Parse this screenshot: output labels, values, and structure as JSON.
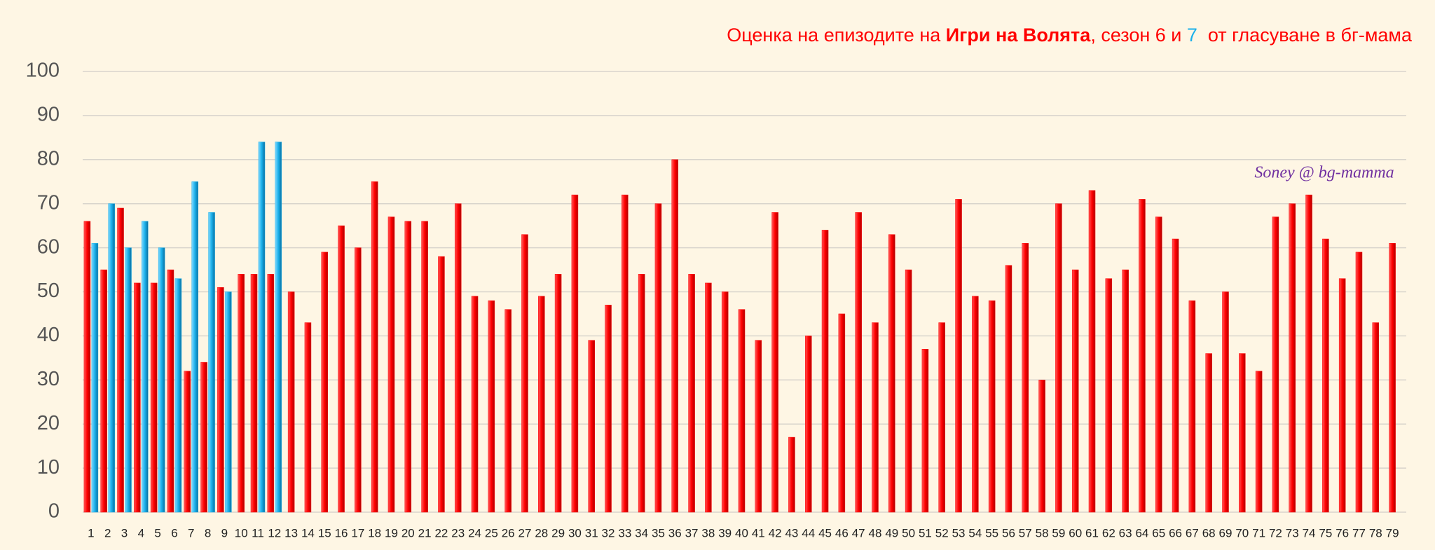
{
  "chart_data": {
    "type": "bar",
    "title_parts": [
      "Оценка на епизодите на ",
      "Игри на Волята",
      ", сезон 6 и ",
      "7",
      "  от гласуване в бг-мама"
    ],
    "annotation": "Soney @ bg-mamma",
    "categories": [
      "1",
      "2",
      "3",
      "4",
      "5",
      "6",
      "7",
      "8",
      "9",
      "10",
      "11",
      "12",
      "13",
      "14",
      "15",
      "16",
      "17",
      "18",
      "19",
      "20",
      "21",
      "22",
      "23",
      "24",
      "25",
      "26",
      "27",
      "28",
      "29",
      "30",
      "31",
      "32",
      "33",
      "34",
      "35",
      "36",
      "37",
      "38",
      "39",
      "40",
      "41",
      "42",
      "43",
      "44",
      "45",
      "46",
      "47",
      "48",
      "49",
      "50",
      "51",
      "52",
      "53",
      "54",
      "55",
      "56",
      "57",
      "58",
      "59",
      "60",
      "61",
      "62",
      "63",
      "64",
      "65",
      "66",
      "67",
      "68",
      "69",
      "70",
      "71",
      "72",
      "73",
      "74",
      "75",
      "76",
      "77",
      "78",
      "79"
    ],
    "series": [
      {
        "color": "#ff0000",
        "values": [
          66,
          55,
          69,
          52,
          52,
          55,
          32,
          34,
          51,
          54,
          54,
          54,
          50,
          43,
          59,
          65,
          60,
          75,
          67,
          66,
          66,
          58,
          70,
          49,
          48,
          46,
          63,
          49,
          54,
          72,
          39,
          47,
          72,
          54,
          70,
          80,
          54,
          52,
          50,
          46,
          39,
          68,
          17,
          40,
          64,
          45,
          68,
          43,
          63,
          55,
          37,
          43,
          71,
          49,
          48,
          56,
          61,
          30,
          70,
          55,
          73,
          53,
          55,
          71,
          67,
          62,
          48,
          36,
          50,
          36,
          32,
          67,
          70,
          72,
          62,
          53,
          59,
          43,
          61
        ]
      },
      {
        "color": "#1ab0ea",
        "values": [
          61,
          70,
          60,
          66,
          60,
          53,
          75,
          68,
          50,
          null,
          84,
          84,
          null,
          null,
          null,
          null,
          null,
          null,
          null,
          null,
          null,
          null,
          null,
          null,
          null,
          null,
          null,
          null,
          null,
          null,
          null,
          null,
          null,
          null,
          null,
          null,
          null,
          null,
          null,
          null,
          null,
          null,
          null,
          null,
          null,
          null,
          null,
          null,
          null,
          null,
          null,
          null,
          null,
          null,
          null,
          null,
          null,
          null,
          null,
          null,
          null,
          null,
          null,
          null,
          null,
          null,
          null,
          null,
          null,
          null,
          null,
          null,
          null,
          null,
          null,
          null,
          null,
          null,
          null
        ]
      }
    ],
    "ylim": [
      0,
      100
    ],
    "yticks": [
      0,
      10,
      20,
      30,
      40,
      50,
      60,
      70,
      80,
      90,
      100
    ],
    "grid": true
  }
}
